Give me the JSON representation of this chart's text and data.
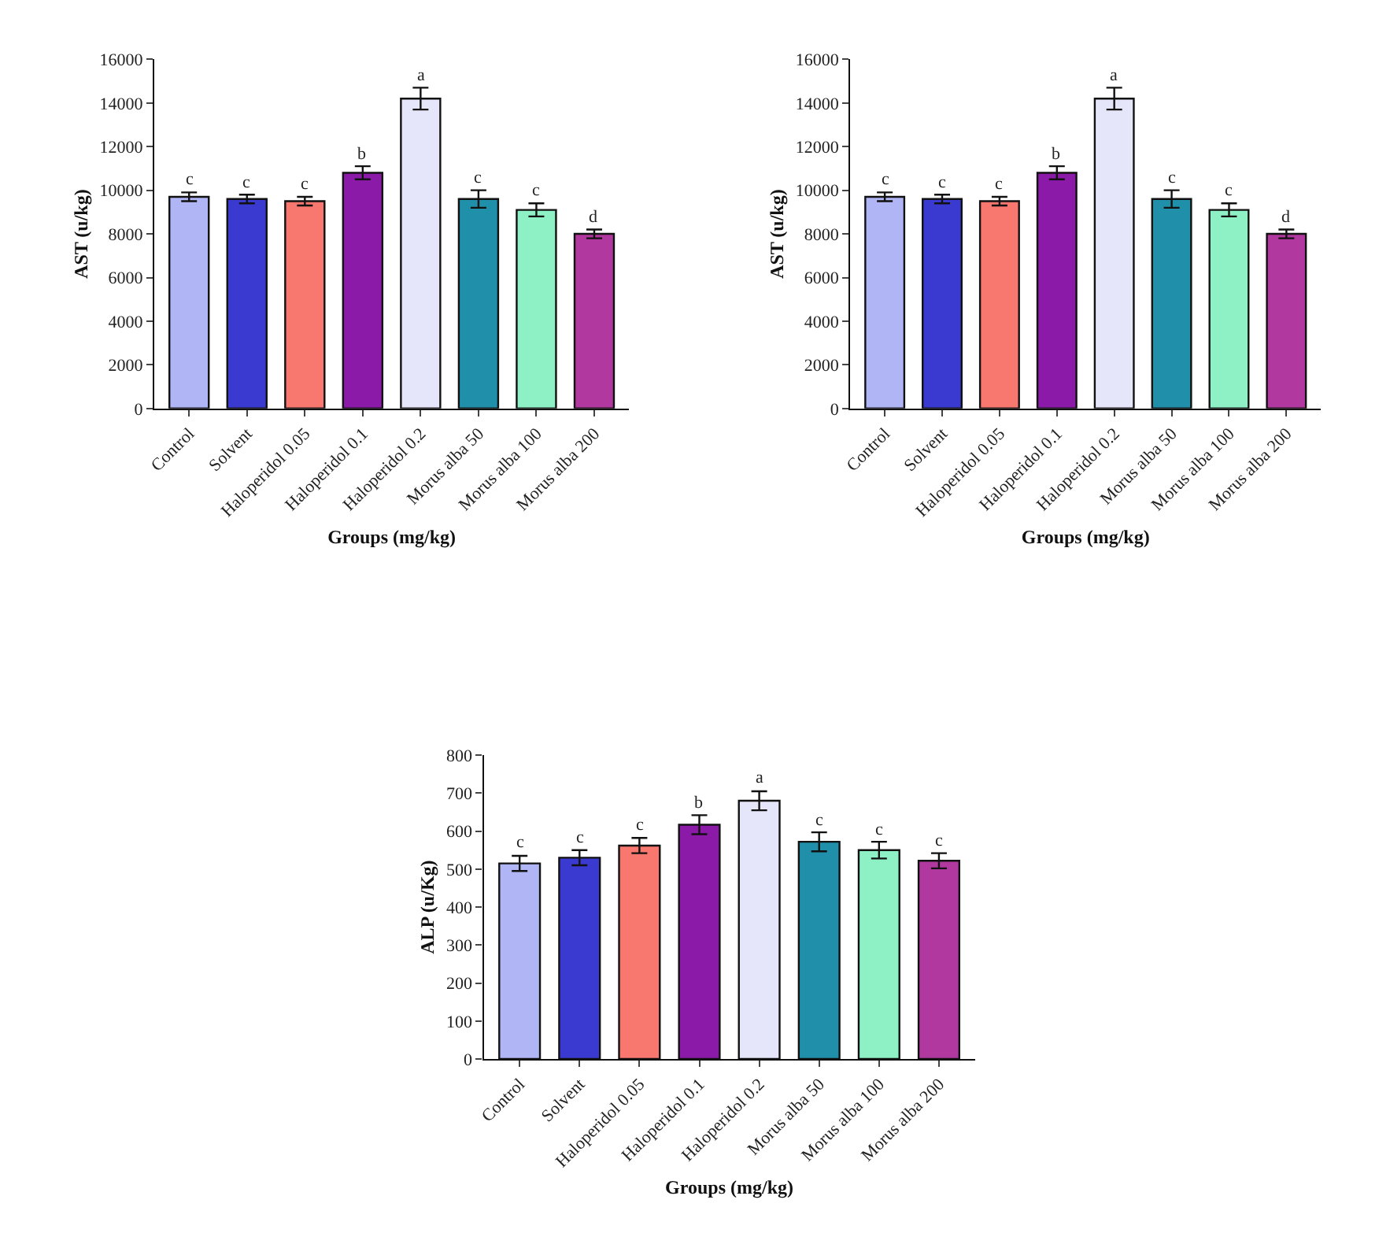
{
  "chart_data": [
    {
      "type": "bar",
      "xlabel": "Groups (mg/kg)",
      "ylabel": "AST (u/kg)",
      "categories": [
        "Control",
        "Solvent",
        "Haloperidol 0.05",
        "Haloperidol 0.1",
        "Haloperidol 0.2",
        "Morus alba 50",
        "Morus alba 100",
        "Morus alba 200"
      ],
      "values": [
        9700,
        9600,
        9500,
        10800,
        14200,
        9600,
        9100,
        8000
      ],
      "errors": [
        200,
        200,
        200,
        300,
        500,
        400,
        300,
        200
      ],
      "colors": [
        "#b0b5f5",
        "#3a3ad0",
        "#f8776f",
        "#8c1aa8",
        "#e6e6fa",
        "#1f8faa",
        "#8ef0c5",
        "#b0389e"
      ],
      "ylim": [
        0,
        16000
      ],
      "yticks": [
        0,
        2000,
        4000,
        6000,
        8000,
        10000,
        12000,
        14000,
        16000
      ],
      "annotations": [
        {
          "text": "c",
          "x": "Control",
          "y": 9900
        },
        {
          "text": "c",
          "x": "Solvent",
          "y": 9800
        },
        {
          "text": "c",
          "x": "Haloperidol 0.05",
          "y": 9700
        },
        {
          "text": "b",
          "x": "Haloperidol 0.1",
          "y": 11100
        },
        {
          "text": "a",
          "x": "Haloperidol 0.2",
          "y": 14700
        },
        {
          "text": "c",
          "x": "Morus alba 50",
          "y": 10000
        },
        {
          "text": "c",
          "x": "Morus alba 100",
          "y": 9400
        },
        {
          "text": "d",
          "x": "Morus alba 200",
          "y": 8200
        }
      ]
    },
    {
      "type": "bar",
      "xlabel": "Groups (mg/kg)",
      "ylabel": "AST (u/kg)",
      "categories": [
        "Control",
        "Solvent",
        "Haloperidol 0.05",
        "Haloperidol 0.1",
        "Haloperidol 0.2",
        "Morus alba 50",
        "Morus alba 100",
        "Morus alba 200"
      ],
      "values": [
        9700,
        9600,
        9500,
        10800,
        14200,
        9600,
        9100,
        8000
      ],
      "errors": [
        200,
        200,
        200,
        300,
        500,
        400,
        300,
        200
      ],
      "colors": [
        "#b0b5f5",
        "#3a3ad0",
        "#f8776f",
        "#8c1aa8",
        "#e6e6fa",
        "#1f8faa",
        "#8ef0c5",
        "#b0389e"
      ],
      "ylim": [
        0,
        16000
      ],
      "yticks": [
        0,
        2000,
        4000,
        6000,
        8000,
        10000,
        12000,
        14000,
        16000
      ],
      "annotations": [
        {
          "text": "c",
          "x": "Control",
          "y": 9900
        },
        {
          "text": "c",
          "x": "Solvent",
          "y": 9800
        },
        {
          "text": "c",
          "x": "Haloperidol 0.05",
          "y": 9700
        },
        {
          "text": "b",
          "x": "Haloperidol 0.1",
          "y": 11100
        },
        {
          "text": "a",
          "x": "Haloperidol 0.2",
          "y": 14700
        },
        {
          "text": "c",
          "x": "Morus alba 50",
          "y": 10000
        },
        {
          "text": "c",
          "x": "Morus alba 100",
          "y": 9400
        },
        {
          "text": "d",
          "x": "Morus alba 200",
          "y": 8200
        }
      ]
    },
    {
      "type": "bar",
      "xlabel": "Groups (mg/kg)",
      "ylabel": "ALP (u/Kg)",
      "categories": [
        "Control",
        "Solvent",
        "Haloperidol 0.05",
        "Haloperidol 0.1",
        "Haloperidol 0.2",
        "Morus alba 50",
        "Morus alba 100",
        "Morus alba 200"
      ],
      "values": [
        515,
        530,
        562,
        617,
        680,
        572,
        550,
        522
      ],
      "errors": [
        20,
        20,
        20,
        25,
        25,
        25,
        22,
        20
      ],
      "colors": [
        "#b0b5f5",
        "#3a3ad0",
        "#f8776f",
        "#8c1aa8",
        "#e6e6fa",
        "#1f8faa",
        "#8ef0c5",
        "#b0389e"
      ],
      "ylim": [
        0,
        800
      ],
      "yticks": [
        0,
        100,
        200,
        300,
        400,
        500,
        600,
        700,
        800
      ],
      "annotations": [
        {
          "text": "c",
          "x": "Control",
          "y": 535
        },
        {
          "text": "c",
          "x": "Solvent",
          "y": 550
        },
        {
          "text": "c",
          "x": "Haloperidol 0.05",
          "y": 582
        },
        {
          "text": "b",
          "x": "Haloperidol 0.1",
          "y": 642
        },
        {
          "text": "a",
          "x": "Haloperidol 0.2",
          "y": 705
        },
        {
          "text": "c",
          "x": "Morus alba 50",
          "y": 597
        },
        {
          "text": "c",
          "x": "Morus alba 100",
          "y": 572
        },
        {
          "text": "c",
          "x": "Morus alba 200",
          "y": 542
        }
      ]
    }
  ]
}
